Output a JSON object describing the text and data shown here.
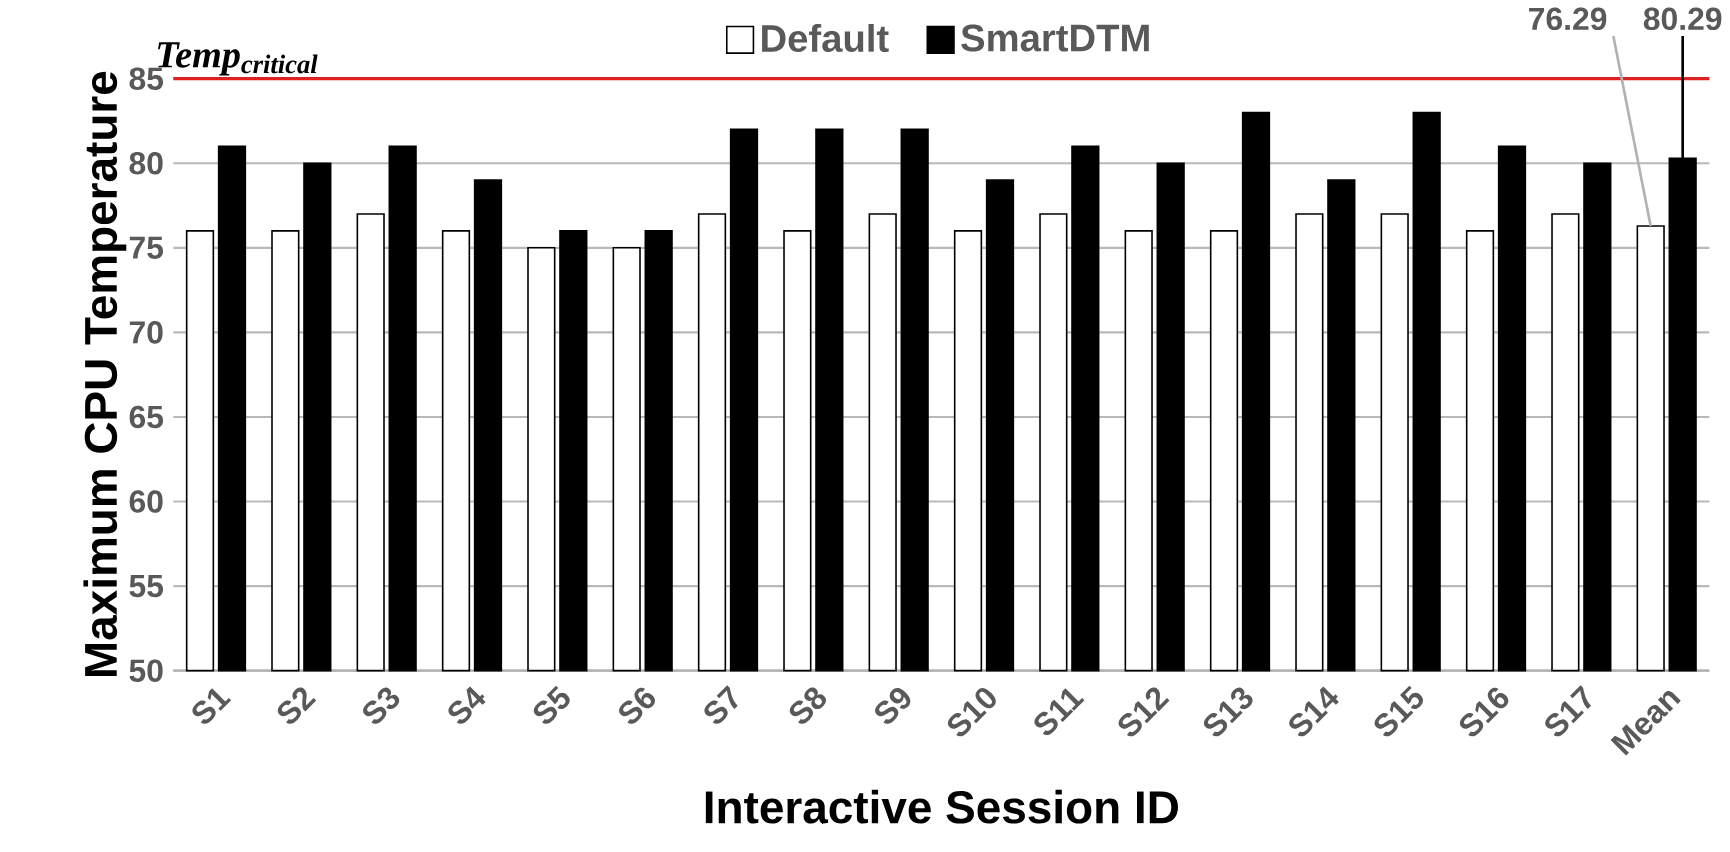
{
  "chart_data": {
    "type": "bar",
    "xlabel": "Interactive Session ID",
    "ylabel": "Maximum CPU Temperature",
    "categories": [
      "S1",
      "S2",
      "S3",
      "S4",
      "S5",
      "S6",
      "S7",
      "S8",
      "S9",
      "S10",
      "S11",
      "S12",
      "S13",
      "S14",
      "S15",
      "S16",
      "S17",
      "Mean"
    ],
    "series": [
      {
        "name": "Default",
        "color": "#ffffff",
        "values": [
          76,
          76,
          77,
          76,
          75,
          75,
          77,
          76,
          77,
          76,
          77,
          76,
          76,
          77,
          77,
          76,
          77,
          76.29
        ],
        "value_labels": [
          null,
          null,
          null,
          null,
          null,
          null,
          null,
          null,
          null,
          null,
          null,
          null,
          null,
          null,
          null,
          null,
          null,
          "76.29"
        ]
      },
      {
        "name": "SmartDTM",
        "color": "#000000",
        "values": [
          81,
          80,
          81,
          79,
          76,
          76,
          82,
          82,
          82,
          79,
          81,
          80,
          83,
          79,
          83,
          81,
          80,
          80.29
        ],
        "value_labels": [
          null,
          null,
          null,
          null,
          null,
          null,
          null,
          null,
          null,
          null,
          null,
          null,
          null,
          null,
          null,
          null,
          null,
          "80.29"
        ]
      }
    ],
    "ylim": [
      50,
      85
    ],
    "yticks": [
      50,
      55,
      60,
      65,
      70,
      75,
      80,
      85
    ],
    "grid": "y",
    "legend": "top",
    "ref_lines": [
      {
        "axis": "y",
        "value": 85,
        "label": "Temp$_{critical}$",
        "color": "#e02020"
      }
    ]
  }
}
